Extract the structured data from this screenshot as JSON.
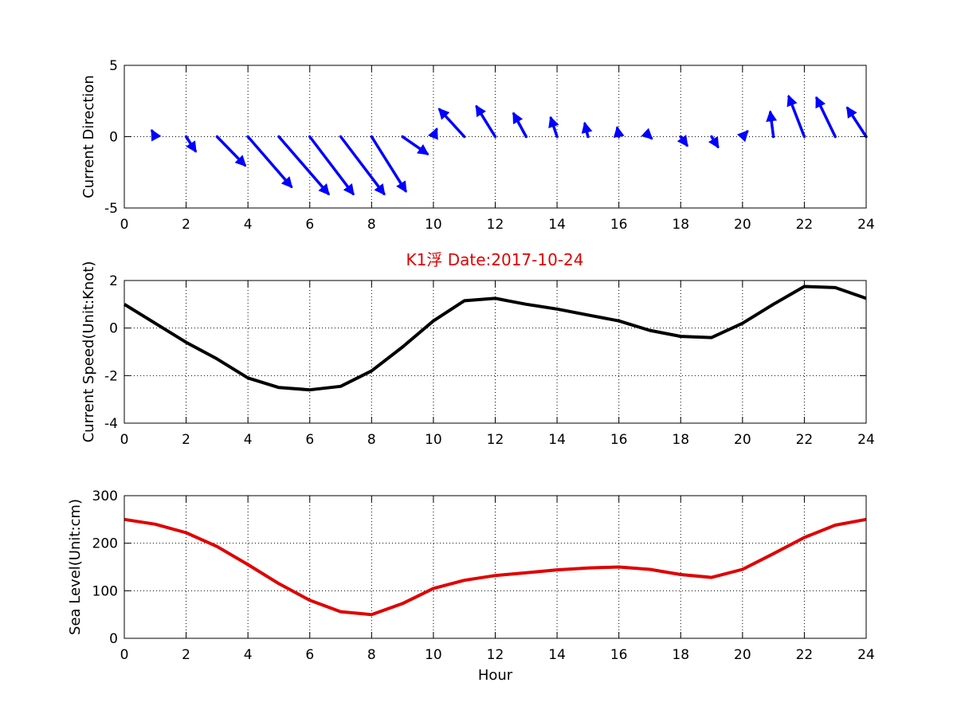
{
  "figure": {
    "title": "K1浮    Date:2017-10-24",
    "colors": {
      "title": "#e00000",
      "quiver": "#0000ff",
      "speed": "#000000",
      "sea_level": "#e00000",
      "grid": "#000000",
      "background": "#ffffff"
    }
  },
  "chart_data": [
    {
      "type": "quiver",
      "ylabel": "Current Direction",
      "xlabel": "",
      "xlim": [
        0,
        24
      ],
      "ylim": [
        -5,
        5
      ],
      "xticks": [
        "0",
        "2",
        "4",
        "6",
        "8",
        "10",
        "12",
        "14",
        "16",
        "18",
        "20",
        "22",
        "24"
      ],
      "yticks": [
        "5",
        "0",
        "-5"
      ],
      "grid": true,
      "series": [
        {
          "color": "#0000ff",
          "x": [
            1,
            2,
            3,
            4,
            5,
            6,
            7,
            8,
            9,
            10,
            11,
            12,
            13,
            14,
            15,
            16,
            17,
            18,
            19,
            20,
            21,
            22,
            23,
            24
          ],
          "y": [
            0,
            0,
            0,
            0,
            0,
            0,
            0,
            0,
            0,
            0,
            0,
            0,
            0,
            0,
            0,
            0,
            0,
            0,
            0,
            0,
            0,
            0,
            0,
            0
          ],
          "u": [
            -0.1,
            0.3,
            0.9,
            1.4,
            1.6,
            1.4,
            1.4,
            1.1,
            0.8,
            0.1,
            -0.8,
            -0.6,
            -0.4,
            -0.2,
            -0.1,
            -0.05,
            0.05,
            0.2,
            0.2,
            0.15,
            -0.1,
            -0.5,
            -0.6,
            -0.6
          ],
          "v": [
            0.4,
            -1.0,
            -2.0,
            -3.5,
            -4.0,
            -4.0,
            -4.0,
            -3.8,
            -1.2,
            0.5,
            1.9,
            2.1,
            1.6,
            1.3,
            0.9,
            0.6,
            -0.1,
            -0.6,
            -0.7,
            0.35,
            1.7,
            2.8,
            2.7,
            2.0
          ]
        }
      ]
    },
    {
      "type": "line",
      "ylabel": "Current Speed(Unit:Knot)",
      "xlabel": "",
      "xlim": [
        0,
        24
      ],
      "ylim": [
        -4,
        2
      ],
      "xticks": [
        "0",
        "2",
        "4",
        "6",
        "8",
        "10",
        "12",
        "14",
        "16",
        "18",
        "20",
        "22",
        "24"
      ],
      "yticks": [
        "2",
        "0",
        "-2",
        "-4"
      ],
      "grid": true,
      "series": [
        {
          "color": "#000000",
          "x": [
            0,
            1,
            2,
            3,
            4,
            5,
            6,
            7,
            8,
            9,
            10,
            11,
            12,
            13,
            14,
            15,
            16,
            17,
            18,
            19,
            20,
            21,
            22,
            23,
            24
          ],
          "y": [
            1.0,
            0.2,
            -0.6,
            -1.3,
            -2.1,
            -2.5,
            -2.6,
            -2.45,
            -1.8,
            -0.8,
            0.3,
            1.15,
            1.25,
            1.0,
            0.8,
            0.55,
            0.3,
            -0.1,
            -0.35,
            -0.4,
            0.2,
            1.0,
            1.75,
            1.7,
            1.25
          ]
        }
      ]
    },
    {
      "type": "line",
      "ylabel": "Sea Level(Unit:cm)",
      "xlabel": "Hour",
      "xlim": [
        0,
        24
      ],
      "ylim": [
        0,
        300
      ],
      "xticks": [
        "0",
        "2",
        "4",
        "6",
        "8",
        "10",
        "12",
        "14",
        "16",
        "18",
        "20",
        "22",
        "24"
      ],
      "yticks": [
        "300",
        "200",
        "100",
        "0"
      ],
      "grid": true,
      "series": [
        {
          "color": "#e00000",
          "x": [
            0,
            1,
            2,
            3,
            4,
            5,
            6,
            7,
            8,
            9,
            10,
            11,
            12,
            13,
            14,
            15,
            16,
            17,
            18,
            19,
            20,
            21,
            22,
            23,
            24
          ],
          "y": [
            250,
            240,
            222,
            193,
            155,
            115,
            80,
            56,
            50,
            73,
            105,
            122,
            132,
            138,
            144,
            148,
            150,
            145,
            134,
            128,
            145,
            178,
            212,
            238,
            250
          ]
        }
      ]
    }
  ]
}
